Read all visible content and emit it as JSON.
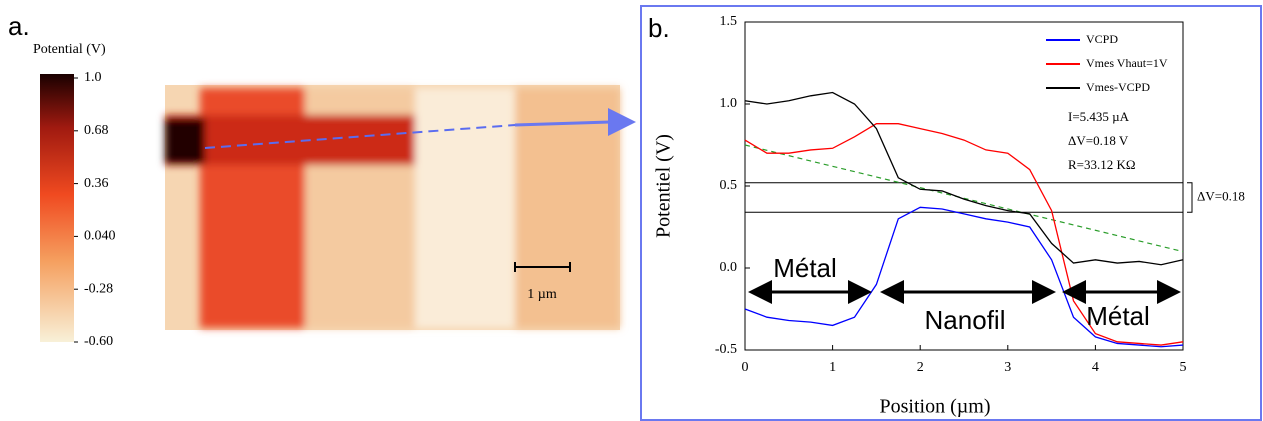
{
  "panel_a": {
    "label": "a.",
    "colorbar": {
      "title": "Potential (V)",
      "lim": [
        -0.6,
        1.0
      ],
      "ticks": [
        {
          "value": 1,
          "label": "1.0"
        },
        0.68,
        0.36,
        {
          "value": 0.04,
          "label": "0.040"
        },
        -0.28,
        {
          "value": -0.6,
          "label": "-0.60"
        }
      ]
    },
    "scale_bar": "1 µm"
  },
  "chart_data": {
    "type": "line",
    "panel_label": "b.",
    "xlabel": "Position (µm)",
    "ylabel": "Potentiel (V)",
    "xlim": [
      0,
      5
    ],
    "ylim": [
      -0.5,
      1.5
    ],
    "xticks": [
      0,
      1,
      2,
      3,
      4,
      5
    ],
    "yticks": [
      -0.5,
      {
        "value": 0,
        "label": "0.0"
      },
      0.5,
      {
        "value": 1,
        "label": "1.0"
      },
      1.5
    ],
    "x": [
      0,
      0.25,
      0.5,
      0.75,
      1,
      1.25,
      1.5,
      1.75,
      2,
      2.25,
      2.5,
      2.75,
      3,
      3.25,
      3.5,
      3.75,
      4,
      4.25,
      4.5,
      4.75,
      5
    ],
    "series": [
      {
        "name": "VCPD",
        "color": "#0000ff",
        "values": [
          -0.25,
          -0.3,
          -0.32,
          -0.33,
          -0.35,
          -0.3,
          -0.1,
          0.3,
          0.37,
          0.36,
          0.33,
          0.3,
          0.28,
          0.25,
          0.05,
          -0.3,
          -0.42,
          -0.46,
          -0.47,
          -0.48,
          -0.47
        ]
      },
      {
        "name": "Vmes Vhaut=1V",
        "color": "#ff0000",
        "values": [
          0.78,
          0.7,
          0.7,
          0.72,
          0.73,
          0.8,
          0.88,
          0.88,
          0.85,
          0.82,
          0.78,
          0.72,
          0.7,
          0.6,
          0.35,
          -0.2,
          -0.4,
          -0.45,
          -0.46,
          -0.47,
          -0.45
        ]
      },
      {
        "name": "Vmes-VCPD",
        "color": "#000000",
        "values": [
          1.02,
          1.0,
          1.02,
          1.05,
          1.07,
          1.0,
          0.85,
          0.55,
          0.48,
          0.47,
          0.42,
          0.38,
          0.35,
          0.33,
          0.15,
          0.03,
          0.05,
          0.03,
          0.04,
          0.02,
          0.05
        ]
      }
    ],
    "fit_line": {
      "x": [
        0,
        5
      ],
      "values": [
        0.75,
        0.1
      ],
      "color": "#2a9d2a"
    },
    "hlines": [
      0.52,
      0.34
    ],
    "legend_notes": [
      "I=5.435 µA",
      "ΔV=0.18 V",
      "R=33.12 KΩ"
    ],
    "delta_label": "ΔV=0.18",
    "regions": [
      "Métal",
      "Nanofil",
      "Métal"
    ]
  }
}
